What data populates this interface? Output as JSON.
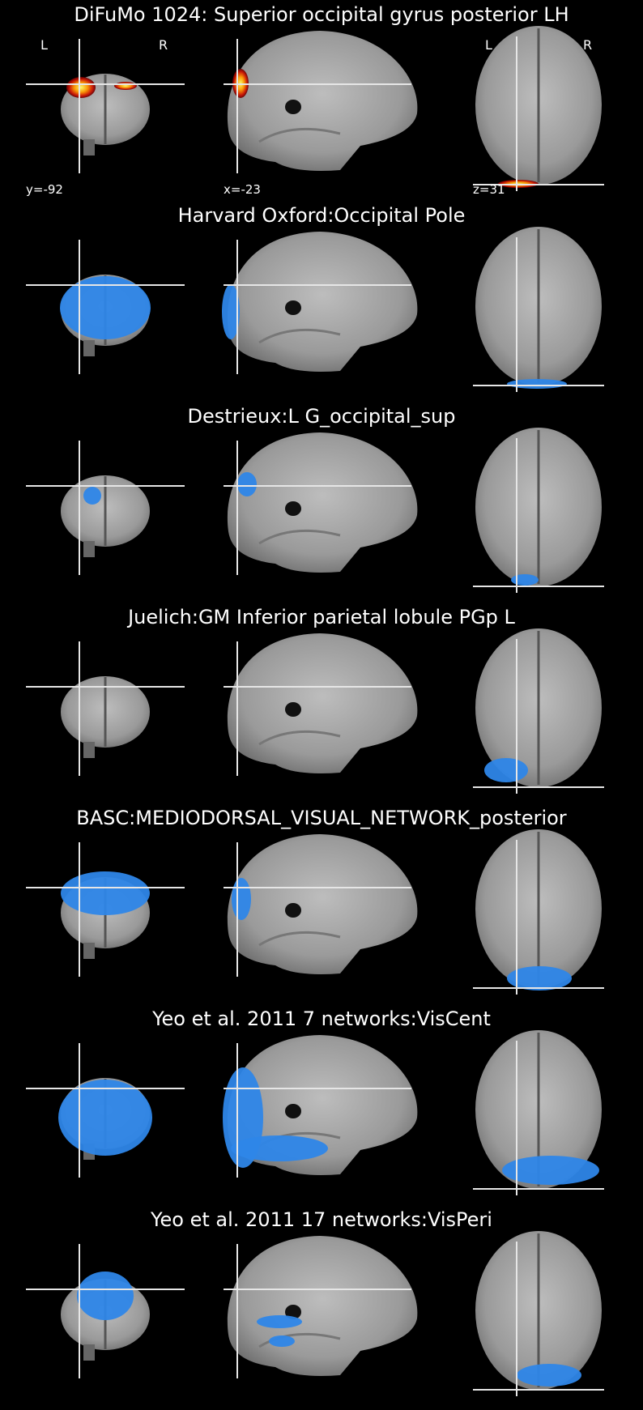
{
  "panels": [
    {
      "title": "DiFuMo 1024: Superior occipital gyrus posterior LH",
      "overlay": "hot",
      "coronal": [
        {
          "ellipse": [
            100,
            108,
            18,
            13
          ]
        },
        {
          "ellipse": [
            155,
            106,
            14,
            5
          ]
        }
      ],
      "sagittal": [
        {
          "ellipse": [
            297,
            103,
            10,
            18
          ]
        }
      ],
      "axial": [
        {
          "ellipse": [
            640,
            227,
            25,
            5
          ]
        }
      ]
    },
    {
      "title": "Harvard Oxford:Occipital Pole",
      "overlay": "blue",
      "coronal": [
        {
          "ellipse": [
            130,
            380,
            56,
            39
          ]
        }
      ],
      "sagittal": [
        {
          "ellipse": [
            285,
            385,
            11,
            34
          ]
        }
      ],
      "axial": [
        {
          "ellipse": [
            663,
            474,
            37,
            6
          ]
        }
      ]
    },
    {
      "title": "Destrieux:L G_occipital_sup",
      "overlay": "blue",
      "coronal": [
        {
          "ellipse": [
            114,
            612,
            11,
            11
          ]
        }
      ],
      "sagittal": [
        {
          "ellipse": [
            305,
            598,
            12,
            15
          ]
        }
      ],
      "axial": [
        {
          "ellipse": [
            648,
            716,
            17,
            7
          ]
        }
      ]
    },
    {
      "title": "Juelich:GM Inferior parietal lobule PGp L",
      "overlay": "blue",
      "coronal": [],
      "sagittal": [],
      "axial": [
        {
          "ellipse": [
            625,
            951,
            27,
            15
          ]
        }
      ]
    },
    {
      "title": "BASC:MEDIODORSAL_VISUAL_NETWORK_posterior",
      "overlay": "blue",
      "coronal": [
        {
          "ellipse": [
            130,
            1103,
            55,
            27
          ]
        }
      ],
      "sagittal": [
        {
          "ellipse": [
            298,
            1110,
            12,
            26
          ]
        }
      ],
      "axial": [
        {
          "ellipse": [
            666,
            1208,
            40,
            15
          ]
        }
      ]
    },
    {
      "title": "Yeo et al. 2011 7 networks:VisCent",
      "overlay": "blue",
      "coronal": [
        {
          "ellipse": [
            130,
            1380,
            58,
            47
          ]
        }
      ],
      "sagittal": [
        {
          "ellipse": [
            300,
            1380,
            25,
            62
          ]
        },
        {
          "ellipse": [
            345,
            1418,
            60,
            16
          ]
        }
      ],
      "axial": [
        {
          "ellipse": [
            680,
            1445,
            60,
            18
          ]
        }
      ]
    },
    {
      "title": "Yeo et al. 2011 17 networks:VisPeri",
      "overlay": "blue",
      "coronal": [
        {
          "ellipse": [
            130,
            1600,
            35,
            30
          ]
        }
      ],
      "sagittal": [
        {
          "ellipse": [
            345,
            1632,
            28,
            8
          ]
        },
        {
          "ellipse": [
            348,
            1656,
            16,
            7
          ]
        }
      ],
      "axial": [
        {
          "ellipse": [
            678,
            1698,
            40,
            14
          ]
        }
      ]
    }
  ],
  "labels": {
    "left": "L",
    "right": "R",
    "coord_y": "y=-92",
    "coord_x": "x=-23",
    "coord_z": "z=31"
  }
}
